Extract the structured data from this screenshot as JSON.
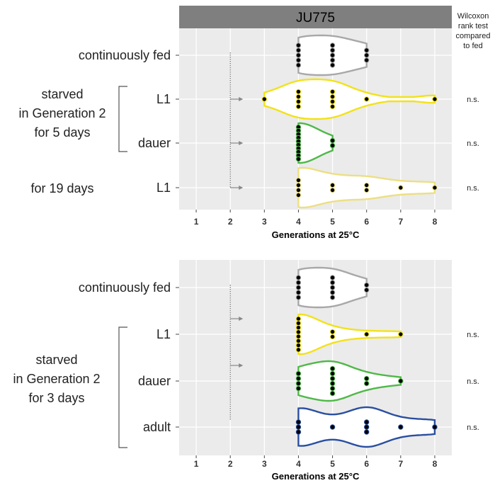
{
  "strip_label": "JU775",
  "test_header": [
    "Wilcoxon",
    "rank test",
    "compared",
    "to fed"
  ],
  "group_labels": {
    "top": [
      "starved",
      "in Generation 2",
      "for 5 days"
    ],
    "top_extra": "for 19 days",
    "bottom": [
      "starved",
      "in Generation 2",
      "for 3 days"
    ]
  },
  "chart_data": [
    {
      "type": "violin-dotplot",
      "panel": "top",
      "strip_title": "JU775",
      "xlabel": "Generations at 25°C",
      "xlim": [
        0.5,
        8.5
      ],
      "xticks": [
        1,
        2,
        3,
        4,
        5,
        6,
        7,
        8
      ],
      "grid": true,
      "starvation_marker_generation": 2,
      "categories": [
        "continuously fed",
        "L1",
        "dauer",
        "L1"
      ],
      "series": [
        {
          "color": "#a8a8a8",
          "values": [
            4,
            4,
            4,
            4,
            4,
            5,
            5,
            5,
            5,
            5,
            6,
            6,
            6
          ],
          "significance": ""
        },
        {
          "color": "#f2e21a",
          "values": [
            3,
            4,
            4,
            4,
            4,
            5,
            5,
            5,
            5,
            6,
            8
          ],
          "significance": "n.s."
        },
        {
          "color": "#4fb848",
          "values": [
            4,
            4,
            4,
            4,
            4,
            4,
            4,
            4,
            4,
            4,
            5,
            5
          ],
          "significance": "n.s."
        },
        {
          "color": "#ecdf83",
          "values": [
            4,
            4,
            4,
            4,
            5,
            5,
            6,
            6,
            7,
            8
          ],
          "significance": "n.s."
        }
      ]
    },
    {
      "type": "violin-dotplot",
      "panel": "bottom",
      "xlabel": "Generations at 25°C",
      "xlim": [
        0.5,
        8.5
      ],
      "xticks": [
        1,
        2,
        3,
        4,
        5,
        6,
        7,
        8
      ],
      "grid": true,
      "starvation_marker_generation": 2,
      "categories": [
        "continuously fed",
        "L1",
        "dauer",
        "adult"
      ],
      "series": [
        {
          "color": "#a8a8a8",
          "values": [
            4,
            4,
            4,
            4,
            4,
            5,
            5,
            5,
            5,
            5,
            6,
            6
          ],
          "significance": ""
        },
        {
          "color": "#f2e21a",
          "values": [
            4,
            4,
            4,
            4,
            4,
            4,
            4,
            4,
            5,
            5,
            6,
            7
          ],
          "significance": "n.s."
        },
        {
          "color": "#4fb848",
          "values": [
            4,
            4,
            4,
            4,
            5,
            5,
            5,
            5,
            5,
            5,
            6,
            6,
            7
          ],
          "significance": "n.s."
        },
        {
          "color": "#2a4fa0",
          "values": [
            4,
            4,
            4,
            5,
            6,
            6,
            6,
            7,
            8
          ],
          "significance": "n.s."
        }
      ]
    }
  ]
}
